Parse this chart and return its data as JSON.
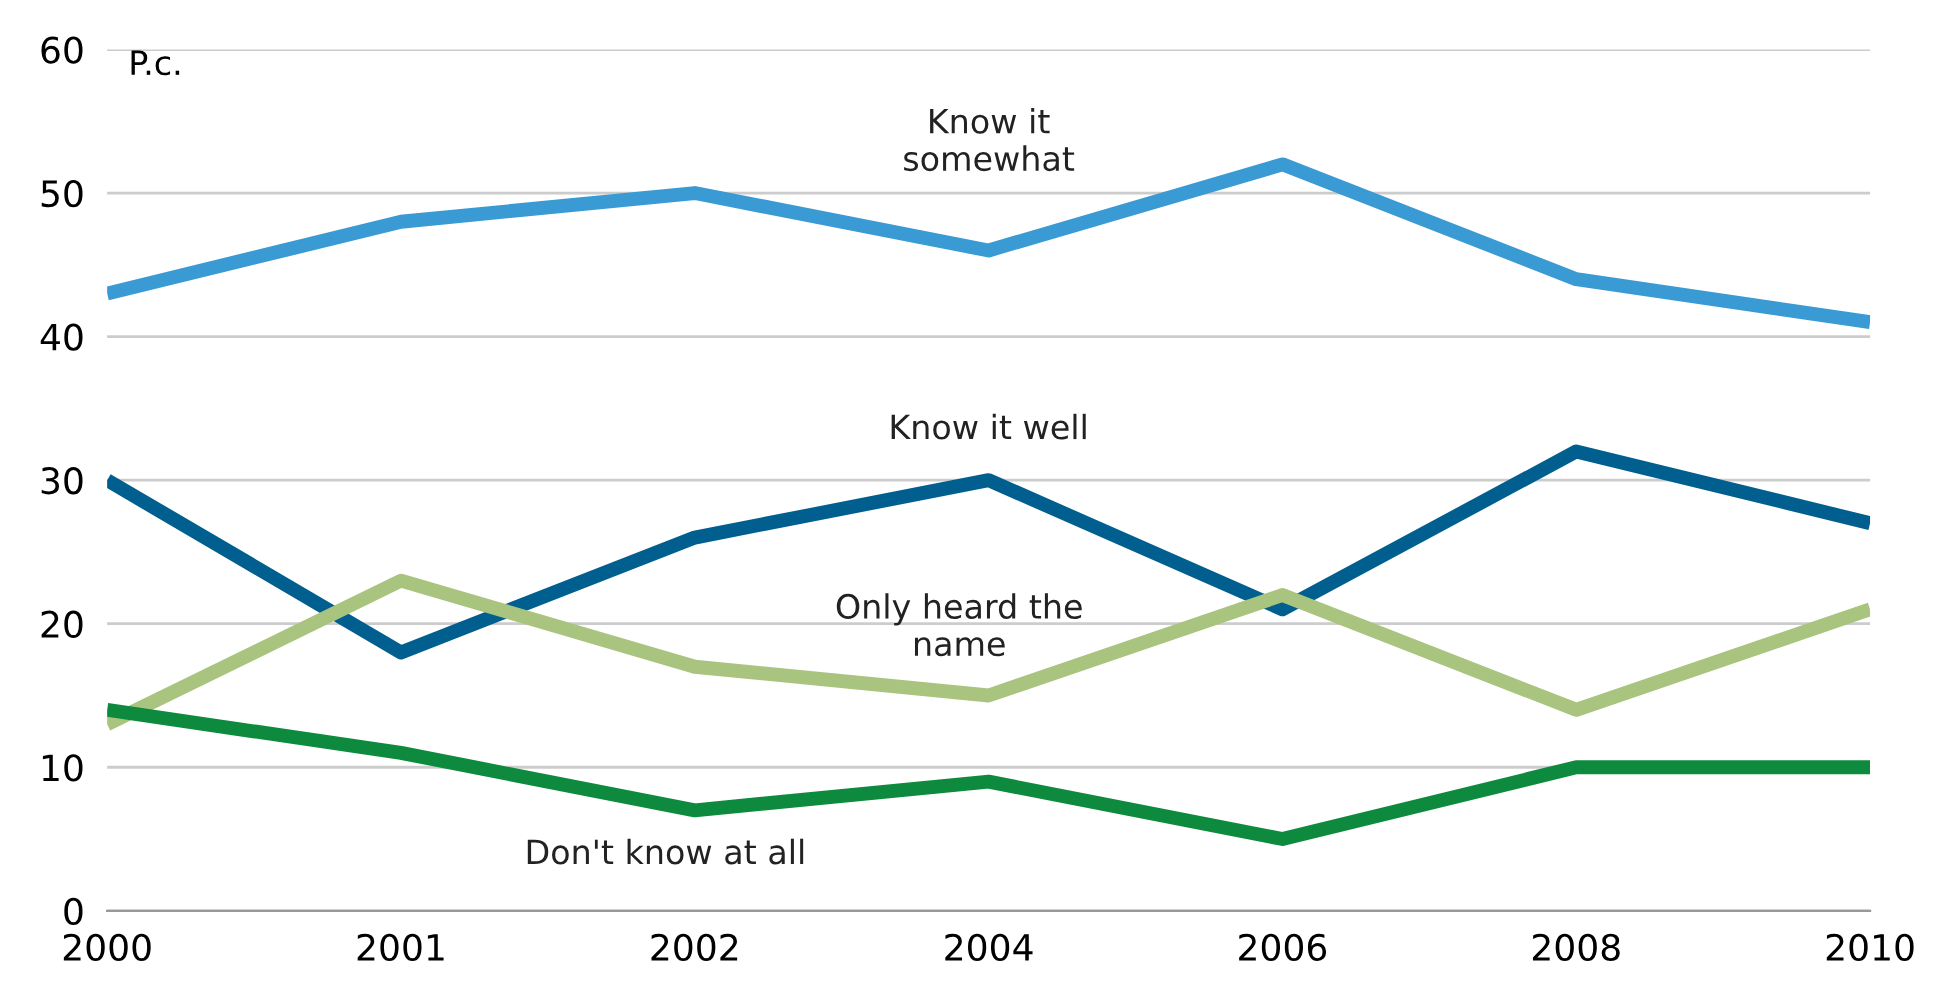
{
  "chart_data": {
    "type": "line",
    "ylabel": "P.c.",
    "categories": [
      "2000",
      "2001",
      "2002",
      "2004",
      "2006",
      "2008",
      "2010"
    ],
    "series": [
      {
        "name": "Know it\nsomewhat",
        "color": "#3a9ad4",
        "values": [
          43,
          48,
          50,
          46,
          52,
          44,
          41
        ]
      },
      {
        "name": "Know it well",
        "color": "#005f8f",
        "values": [
          30,
          18,
          26,
          30,
          21,
          32,
          27
        ]
      },
      {
        "name": "Only heard the\nname",
        "color": "#a9c47f",
        "values": [
          13,
          23,
          17,
          15,
          22,
          14,
          21
        ]
      },
      {
        "name": "Don't know at all",
        "color": "#0e8a3e",
        "values": [
          14,
          11,
          7,
          9,
          5,
          10,
          10
        ]
      }
    ],
    "ylim": [
      0,
      60
    ],
    "yticks": [
      0,
      10,
      20,
      30,
      40,
      50,
      60
    ],
    "grid": "y",
    "legend": false
  }
}
